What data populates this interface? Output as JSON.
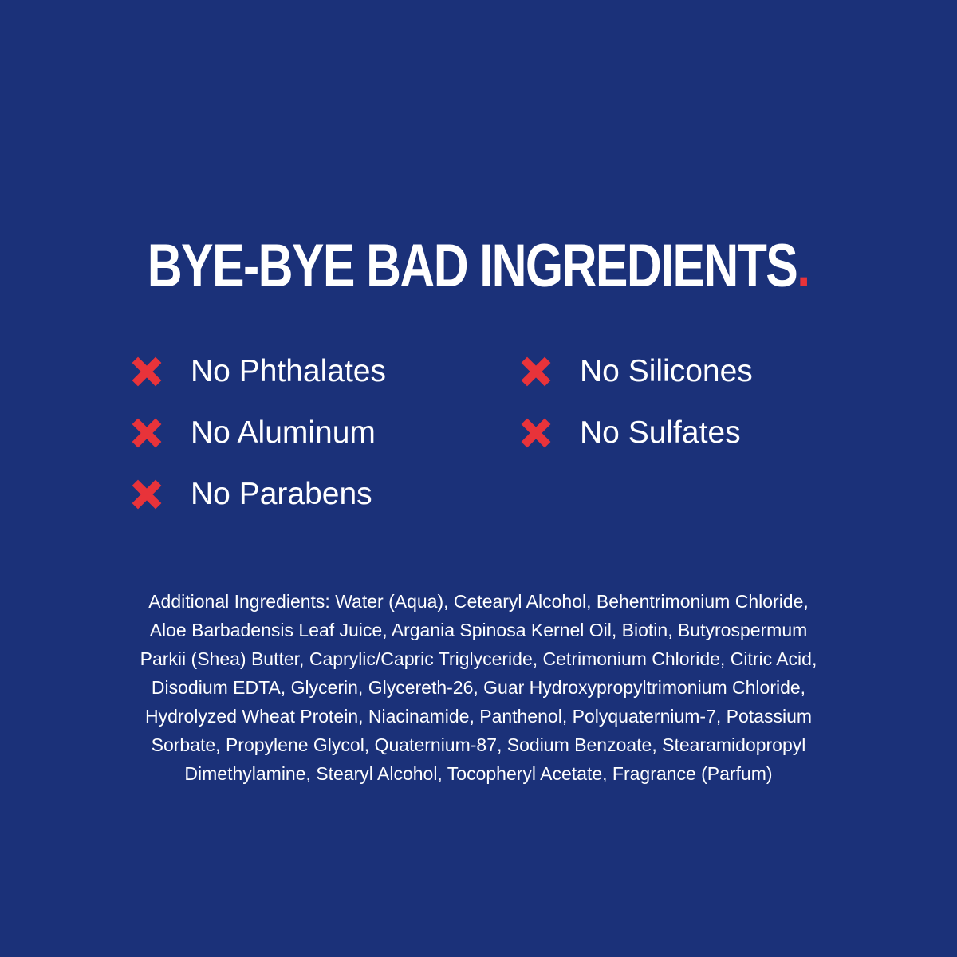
{
  "headline": {
    "text": "BYE-BYE BAD INGREDIENTS",
    "period": "."
  },
  "colors": {
    "background": "#1b3179",
    "accent": "#e8333a",
    "text": "#ffffff"
  },
  "free_from": [
    {
      "label": "No Phthalates",
      "icon": "x-icon"
    },
    {
      "label": "No Aluminum",
      "icon": "x-icon"
    },
    {
      "label": "No Parabens",
      "icon": "x-icon"
    },
    {
      "label": "No Silicones",
      "icon": "x-icon"
    },
    {
      "label": "No Sulfates",
      "icon": "x-icon"
    }
  ],
  "ingredients_lines": [
    "Additional Ingredients: Water (Aqua), Cetearyl Alcohol, Behentrimonium Chloride,",
    "Aloe Barbadensis Leaf Juice, Argania Spinosa Kernel Oil, Biotin, Butyrospermum",
    "Parkii (Shea) Butter, Caprylic/Capric Triglyceride, Cetrimonium Chloride, Citric Acid,",
    "Disodium EDTA, Glycerin, Glycereth-26, Guar Hydroxypropyltrimonium Chloride,",
    "Hydrolyzed Wheat Protein, Niacinamide, Panthenol, Polyquaternium-7, Potassium",
    "Sorbate, Propylene Glycol, Quaternium-87, Sodium Benzoate, Stearamidopropyl",
    "Dimethylamine, Stearyl Alcohol, Tocopheryl Acetate, Fragrance (Parfum)"
  ]
}
